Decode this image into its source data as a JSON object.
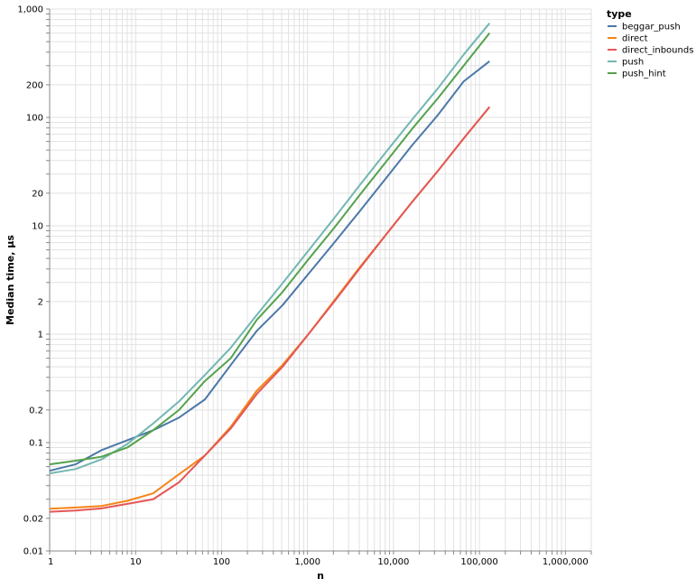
{
  "chart_data": {
    "type": "line",
    "xlabel": "n",
    "ylabel": "Median time, µs",
    "xscale": "log",
    "yscale": "log",
    "xlim": [
      1,
      2000000
    ],
    "ylim": [
      0.01,
      1000
    ],
    "grid": true,
    "legend_position": "top-right",
    "legend_title": "type",
    "x_ticks": [
      {
        "value": 1,
        "label": "1"
      },
      {
        "value": 10,
        "label": "10"
      },
      {
        "value": 100,
        "label": "100"
      },
      {
        "value": 1000,
        "label": "1,000"
      },
      {
        "value": 10000,
        "label": "10,000"
      },
      {
        "value": 100000,
        "label": "100,000"
      },
      {
        "value": 1000000,
        "label": "1,000,000"
      }
    ],
    "y_ticks": [
      {
        "value": 0.01,
        "label": "0.01"
      },
      {
        "value": 0.02,
        "label": "0.02"
      },
      {
        "value": 0.1,
        "label": "0.1"
      },
      {
        "value": 0.2,
        "label": "0.2"
      },
      {
        "value": 1,
        "label": "1"
      },
      {
        "value": 2,
        "label": "2"
      },
      {
        "value": 10,
        "label": "10"
      },
      {
        "value": 20,
        "label": "20"
      },
      {
        "value": 100,
        "label": "100"
      },
      {
        "value": 200,
        "label": "200"
      },
      {
        "value": 1000,
        "label": "1,000"
      }
    ],
    "x": [
      1,
      2,
      4,
      8,
      16,
      32,
      64,
      128,
      256,
      512,
      1024,
      2048,
      4096,
      8192,
      16384,
      32768,
      65536,
      131072
    ],
    "series": [
      {
        "name": "beggar_push",
        "color": "#4c78a8",
        "values": [
          0.055,
          0.063,
          0.085,
          0.105,
          0.13,
          0.17,
          0.25,
          0.52,
          1.07,
          1.85,
          3.6,
          7.0,
          13.8,
          27.5,
          55,
          105,
          215,
          330
        ]
      },
      {
        "name": "direct",
        "color": "#f58518",
        "values": [
          0.0245,
          0.0252,
          0.026,
          0.029,
          0.034,
          0.051,
          0.076,
          0.14,
          0.3,
          0.52,
          1.0,
          2.05,
          4.2,
          8.3,
          16.5,
          32,
          64,
          125
        ]
      },
      {
        "name": "direct_inbounds",
        "color": "#e45756",
        "values": [
          0.023,
          0.0236,
          0.0247,
          0.0272,
          0.03,
          0.043,
          0.076,
          0.135,
          0.28,
          0.5,
          1.0,
          2.0,
          4.1,
          8.3,
          16.5,
          32,
          64,
          125
        ]
      },
      {
        "name": "push",
        "color": "#72b7b2",
        "values": [
          0.052,
          0.057,
          0.07,
          0.097,
          0.15,
          0.24,
          0.42,
          0.75,
          1.5,
          2.95,
          5.9,
          11.8,
          24,
          48,
          95,
          185,
          380,
          740
        ]
      },
      {
        "name": "push_hint",
        "color": "#54a24b",
        "values": [
          0.063,
          0.068,
          0.074,
          0.09,
          0.13,
          0.2,
          0.37,
          0.6,
          1.35,
          2.45,
          4.9,
          9.6,
          19.5,
          39,
          78,
          150,
          300,
          600
        ]
      }
    ]
  }
}
